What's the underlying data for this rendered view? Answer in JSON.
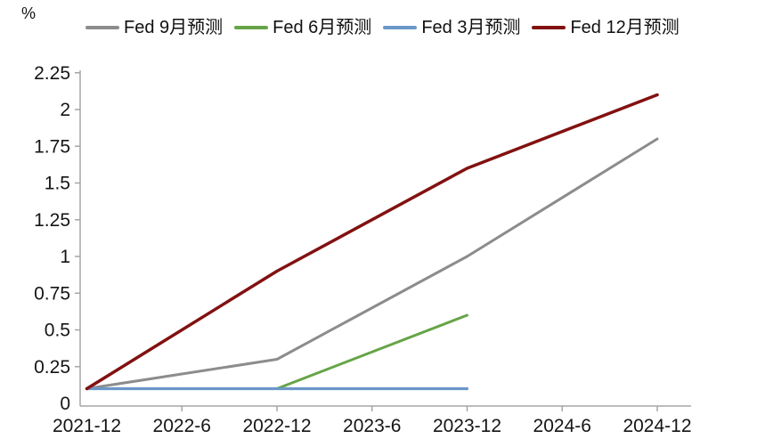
{
  "chart": {
    "unit_label": "%"
  },
  "chart_data": {
    "type": "line",
    "title": "",
    "xlabel": "",
    "ylabel": "%",
    "categories": [
      "2021-12",
      "2022-6",
      "2022-12",
      "2023-6",
      "2023-12",
      "2024-6",
      "2024-12"
    ],
    "ylim": [
      0,
      2.25
    ],
    "ytick_step": 0.25,
    "yticks": [
      "0",
      "0.25",
      "0.5",
      "0.75",
      "1",
      "1.25",
      "1.5",
      "1.75",
      "2",
      "2.25"
    ],
    "grid": false,
    "legend_position": "top",
    "axis_color": "#a6a6a6",
    "series": [
      {
        "name": "Fed 9月预测",
        "color": "#8c8c8c",
        "width": 3,
        "points": [
          [
            "2021-12",
            0.1
          ],
          [
            "2022-12",
            0.3
          ],
          [
            "2023-12",
            1.0
          ],
          [
            "2024-12",
            1.8
          ]
        ]
      },
      {
        "name": "Fed 6月预测",
        "color": "#66a447",
        "width": 3,
        "points": [
          [
            "2022-12",
            0.1
          ],
          [
            "2023-12",
            0.6
          ]
        ]
      },
      {
        "name": "Fed 3月预测",
        "color": "#6a97c8",
        "width": 3.2,
        "points": [
          [
            "2021-12",
            0.1
          ],
          [
            "2023-12",
            0.1
          ]
        ]
      },
      {
        "name": "Fed 12月预测",
        "color": "#821111",
        "width": 3.5,
        "points": [
          [
            "2021-12",
            0.1
          ],
          [
            "2022-12",
            0.9
          ],
          [
            "2023-12",
            1.6
          ],
          [
            "2024-12",
            2.1
          ]
        ]
      }
    ]
  }
}
